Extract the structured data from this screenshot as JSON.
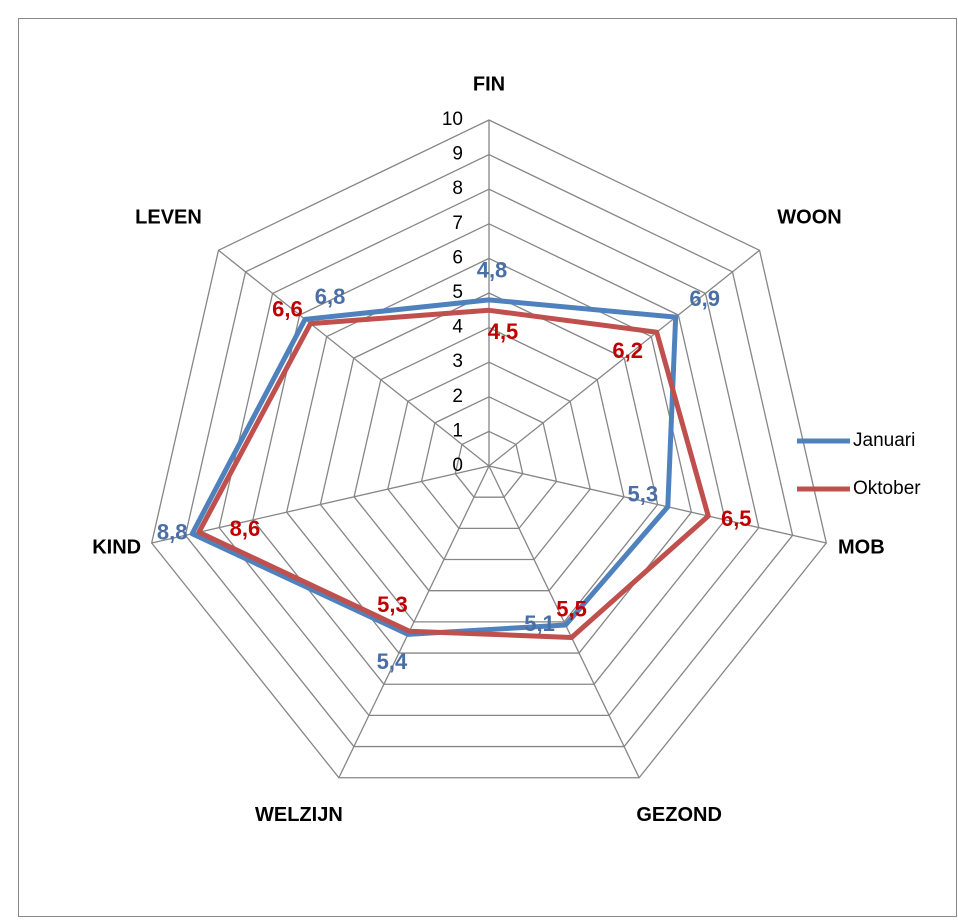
{
  "chart_data": {
    "type": "radar",
    "categories": [
      "FIN",
      "WOON",
      "MOB",
      "GEZOND",
      "WELZIJN",
      "KIND",
      "LEVEN"
    ],
    "series": [
      {
        "name": "Januari",
        "color": "#4f81bd",
        "label_color": "#4a6fa5",
        "values": [
          4.8,
          6.9,
          5.3,
          5.1,
          5.4,
          8.8,
          6.8
        ],
        "value_labels": [
          "4,8",
          "6,9",
          "5,3",
          "5,1",
          "5,4",
          "8,8",
          "6,8"
        ]
      },
      {
        "name": "Oktober",
        "color": "#c0504d",
        "label_color": "#c00000",
        "values": [
          4.5,
          6.2,
          6.5,
          5.5,
          5.3,
          8.6,
          6.6
        ],
        "value_labels": [
          "4,5",
          "6,2",
          "6,5",
          "5,5",
          "5,3",
          "8,6",
          "6,6"
        ]
      }
    ],
    "ylim": [
      0,
      10
    ],
    "yticks": [
      0,
      1,
      2,
      3,
      4,
      5,
      6,
      7,
      8,
      9,
      10
    ],
    "grid": true,
    "legend": "right"
  }
}
